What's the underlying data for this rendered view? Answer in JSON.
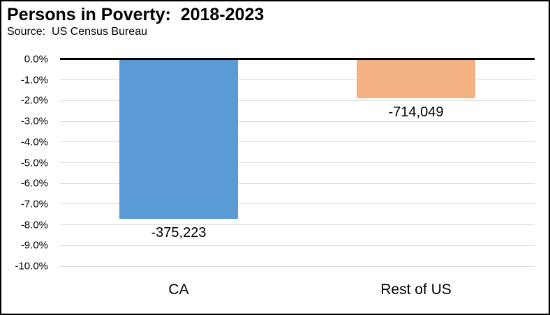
{
  "title": "Persons in Poverty:  2018-2023",
  "subtitle": "Source:  US Census Bureau",
  "chart_data": {
    "type": "bar",
    "title": "Persons in Poverty:  2018-2023",
    "subtitle": "Source:  US Census Bureau",
    "categories": [
      "CA",
      "Rest of US"
    ],
    "values": [
      -7.7,
      -1.9
    ],
    "value_unit": "percent",
    "data_labels": [
      "-375,223",
      "-714,049"
    ],
    "bar_colors": [
      "#5B9BD5",
      "#F4B183"
    ],
    "xlabel": "",
    "ylabel": "",
    "ylim": [
      -10,
      0
    ],
    "ytick_values": [
      0,
      -1,
      -2,
      -3,
      -4,
      -5,
      -6,
      -7,
      -8,
      -9,
      -10
    ],
    "ytick_labels": [
      "0.0%",
      "-1.0%",
      "-2.0%",
      "-3.0%",
      "-4.0%",
      "-5.0%",
      "-6.0%",
      "-7.0%",
      "-8.0%",
      "-9.0%",
      "-10.0%"
    ],
    "grid": true,
    "gridline_color": "#D9D9D9",
    "zero_line_color": "#000000",
    "legend": "none",
    "bar_gap_ratio": 0.5
  }
}
